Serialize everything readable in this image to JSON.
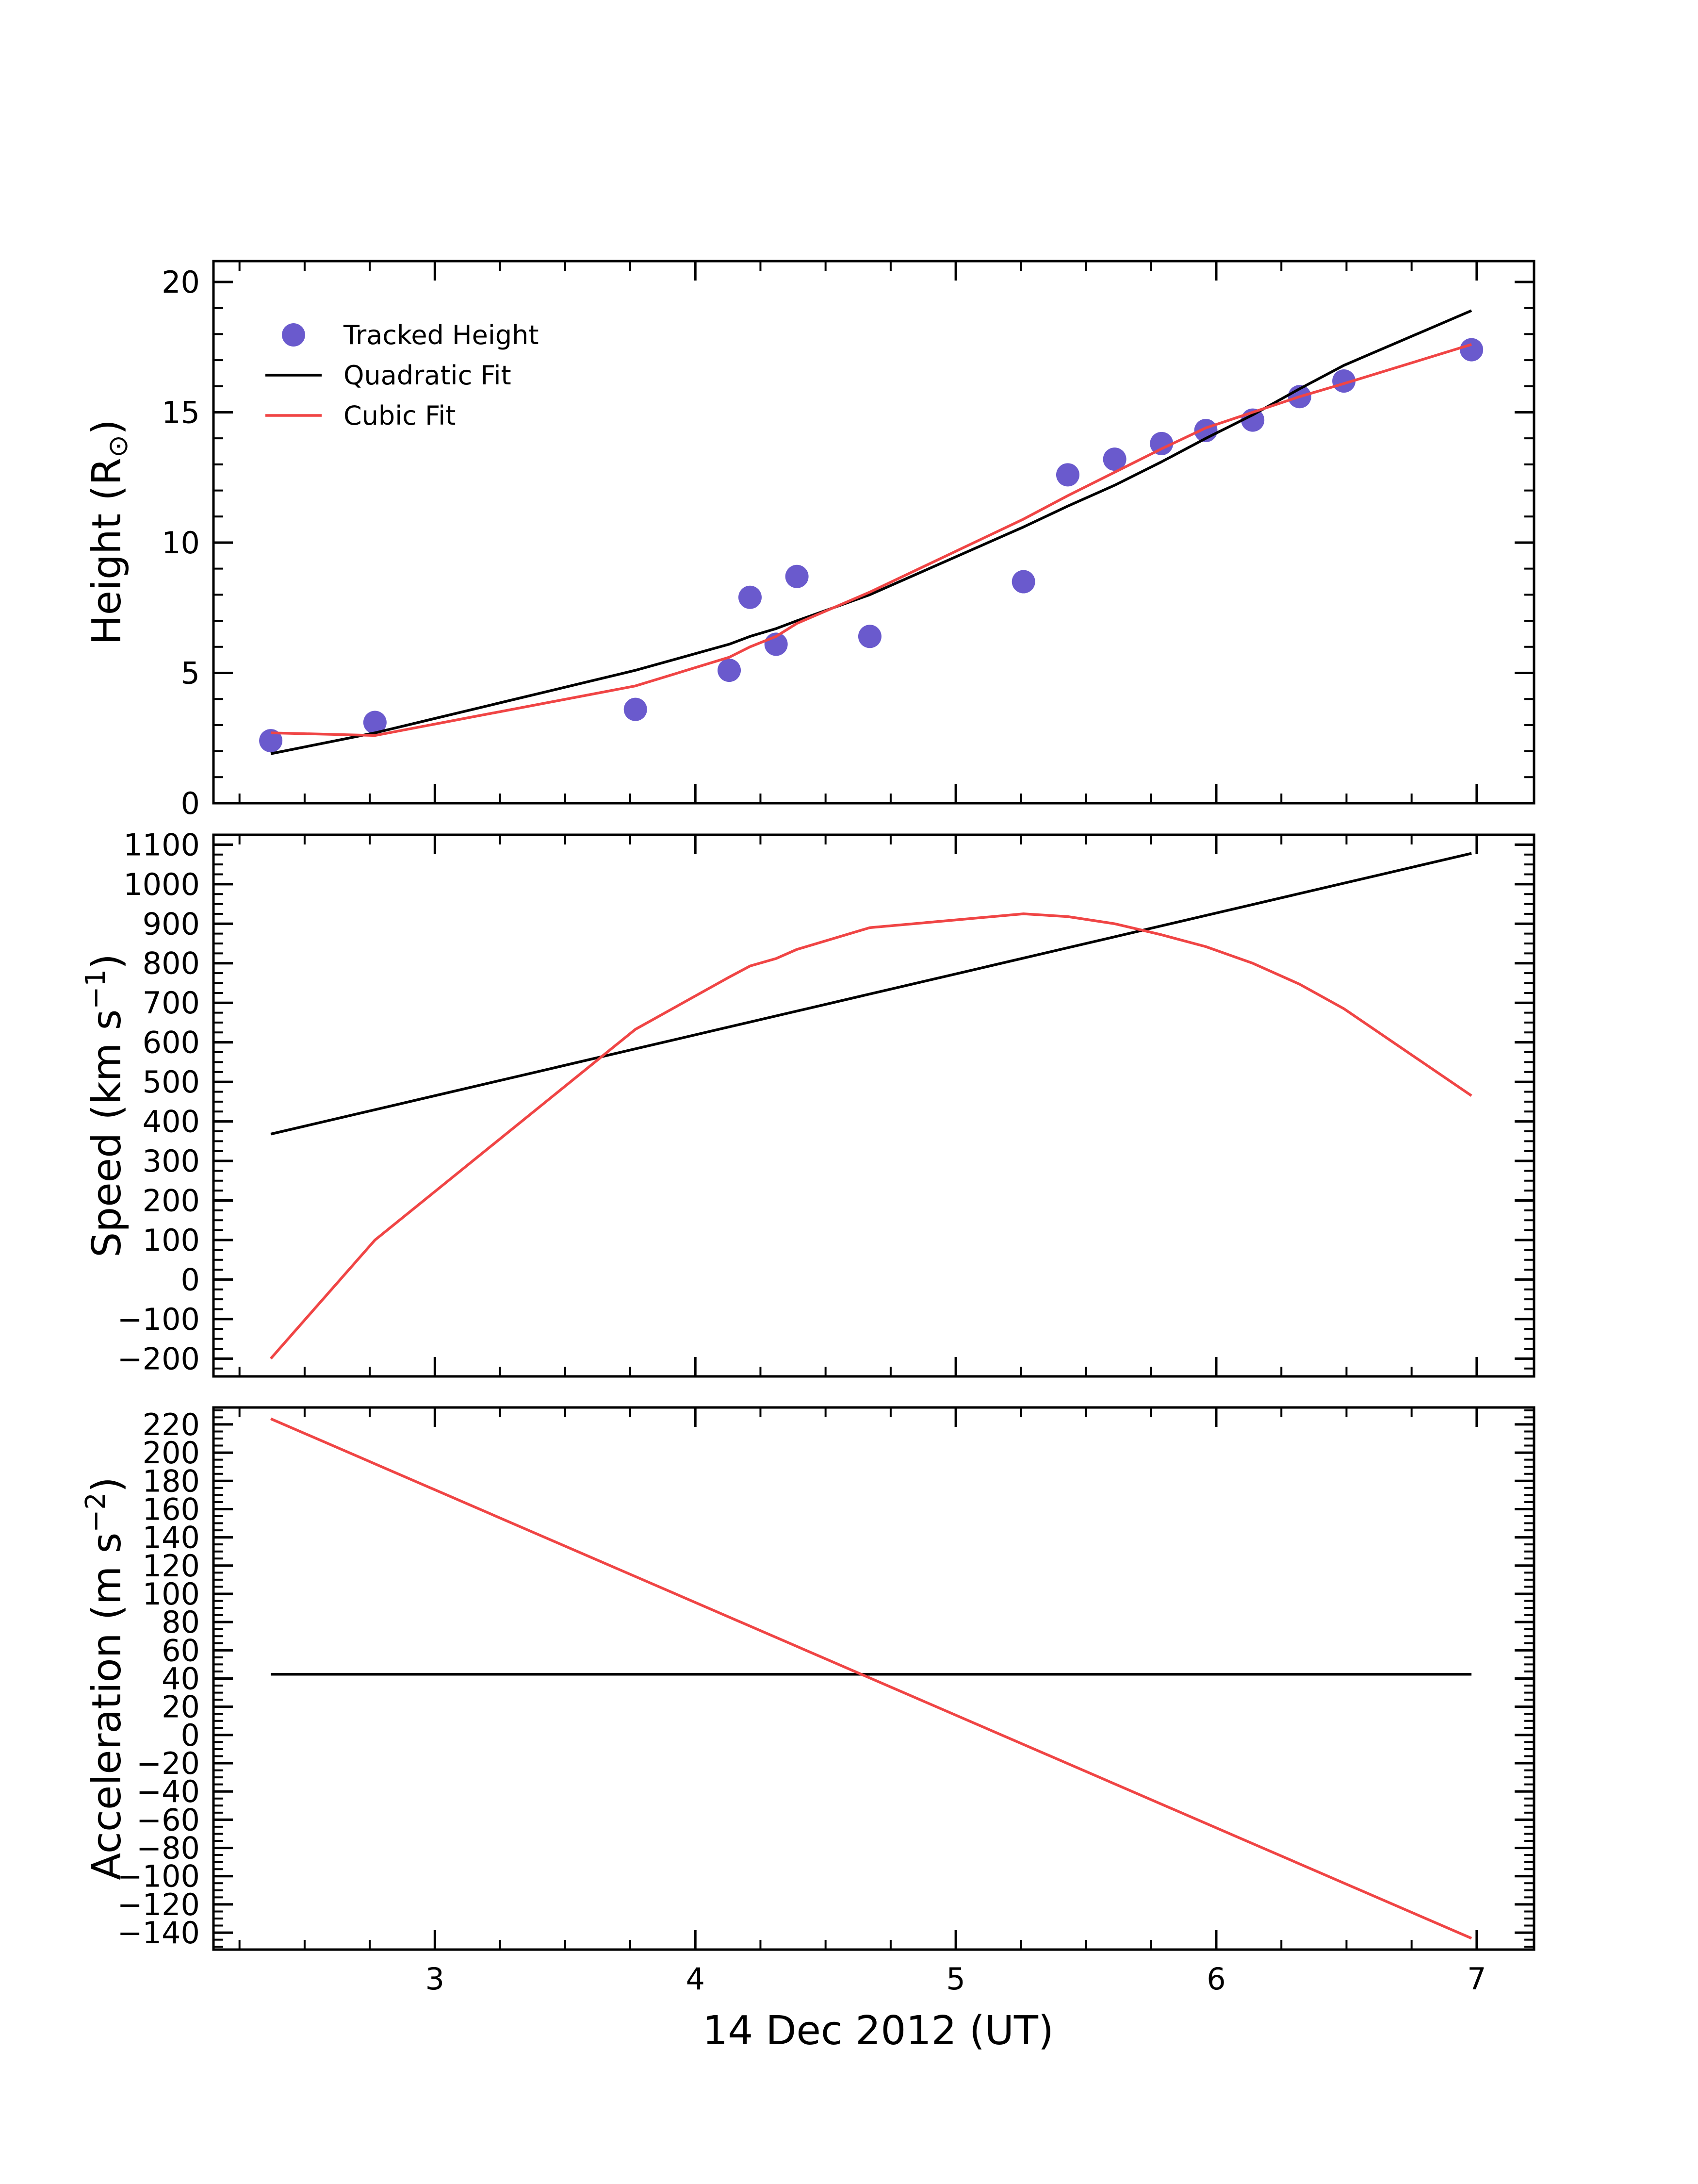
{
  "figure": {
    "xlabel": "14 Dec 2012 (UT)",
    "xlim": [
      2.15,
      7.22
    ],
    "xticks": [
      3,
      4,
      5,
      6,
      7
    ],
    "xtick_labels": [
      "3",
      "4",
      "5",
      "6",
      "7"
    ],
    "x_minor_step": 0.25
  },
  "colors": {
    "tracked": "#6a5acd",
    "quadratic": "#000000",
    "cubic": "#f04545"
  },
  "chart_data": [
    {
      "type": "scatter",
      "panel": "height",
      "ylabel_main": "Height (R",
      "ylabel_sub": "⊙",
      "ylabel_end": ")",
      "ylim": [
        0,
        20.8
      ],
      "yticks": [
        0,
        5,
        10,
        15,
        20
      ],
      "ytick_labels": [
        "0",
        "5",
        "10",
        "15",
        "20"
      ],
      "y_minor_step": 1,
      "legend": {
        "placement": "upper-left",
        "entries": [
          "Tracked Height",
          "Quadratic Fit",
          "Cubic Fit"
        ]
      },
      "series": [
        {
          "name": "Tracked Height",
          "kind": "points",
          "x": [
            2.37,
            2.77,
            3.77,
            4.13,
            4.21,
            4.31,
            4.39,
            4.67,
            5.26,
            5.43,
            5.61,
            5.79,
            5.96,
            6.14,
            6.32,
            6.49,
            6.98
          ],
          "y": [
            2.4,
            3.1,
            3.6,
            5.1,
            7.9,
            6.1,
            8.7,
            6.4,
            8.5,
            12.6,
            13.2,
            13.8,
            14.3,
            14.7,
            15.6,
            16.2,
            17.4
          ]
        },
        {
          "name": "Quadratic Fit",
          "kind": "line",
          "x": [
            2.37,
            2.77,
            3.77,
            4.13,
            4.21,
            4.31,
            4.39,
            4.67,
            5.26,
            5.43,
            5.61,
            5.79,
            5.96,
            6.14,
            6.32,
            6.49,
            6.98
          ],
          "y": [
            1.9,
            2.7,
            5.1,
            6.1,
            6.4,
            6.7,
            7.0,
            8.0,
            10.6,
            11.4,
            12.2,
            13.1,
            14.0,
            14.9,
            15.9,
            16.8,
            18.9
          ]
        },
        {
          "name": "Cubic Fit",
          "kind": "line",
          "x": [
            2.37,
            2.77,
            3.77,
            4.13,
            4.21,
            4.31,
            4.39,
            4.67,
            5.26,
            5.43,
            5.61,
            5.79,
            5.96,
            6.14,
            6.32,
            6.49,
            6.98
          ],
          "y": [
            2.7,
            2.6,
            4.5,
            5.6,
            6.0,
            6.4,
            6.9,
            8.1,
            10.9,
            11.8,
            12.7,
            13.6,
            14.4,
            15.0,
            15.6,
            16.1,
            17.6
          ]
        }
      ]
    },
    {
      "type": "line",
      "panel": "speed",
      "ylabel_main": "Speed (km s",
      "ylabel_sup": "−1",
      "ylabel_end": ")",
      "ylim": [
        -245,
        1125
      ],
      "yticks": [
        -200,
        -100,
        0,
        100,
        200,
        300,
        400,
        500,
        600,
        700,
        800,
        900,
        1000,
        1100
      ],
      "ytick_labels": [
        "−200",
        "−100",
        "0",
        "100",
        "200",
        "300",
        "400",
        "500",
        "600",
        "700",
        "800",
        "900",
        "1000",
        "1100"
      ],
      "y_minor_step": 25,
      "series": [
        {
          "name": "Quadratic Fit",
          "x": [
            2.37,
            6.98
          ],
          "y": [
            368,
            1078
          ]
        },
        {
          "name": "Cubic Fit",
          "x": [
            2.37,
            2.77,
            3.77,
            4.13,
            4.21,
            4.31,
            4.39,
            4.67,
            5.26,
            5.43,
            5.61,
            5.79,
            5.96,
            6.14,
            6.32,
            6.49,
            6.98
          ],
          "y": [
            -200,
            100,
            633,
            765,
            793,
            812,
            835,
            890,
            925,
            918,
            900,
            872,
            842,
            800,
            747,
            685,
            465
          ]
        }
      ]
    },
    {
      "type": "line",
      "panel": "acceleration",
      "ylabel_main": "Acceleration (m s",
      "ylabel_sup": "−2",
      "ylabel_end": ")",
      "ylim": [
        -152,
        232
      ],
      "yticks": [
        -140,
        -120,
        -100,
        -80,
        -60,
        -40,
        -20,
        0,
        20,
        40,
        60,
        80,
        100,
        120,
        140,
        160,
        180,
        200,
        220
      ],
      "ytick_labels": [
        "−140",
        "−120",
        "−100",
        "−80",
        "−60",
        "−40",
        "−20",
        "0",
        "20",
        "40",
        "60",
        "80",
        "100",
        "120",
        "140",
        "160",
        "180",
        "200",
        "220"
      ],
      "y_minor_step": 5,
      "series": [
        {
          "name": "Quadratic Fit",
          "x": [
            2.37,
            6.98
          ],
          "y": [
            43,
            43
          ]
        },
        {
          "name": "Cubic Fit",
          "x": [
            2.37,
            6.98
          ],
          "y": [
            224,
            -144
          ]
        }
      ]
    }
  ]
}
